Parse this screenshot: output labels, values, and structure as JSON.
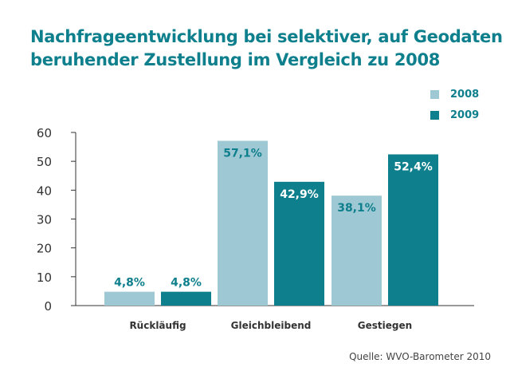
{
  "title_lines": [
    "Nachfrageentwicklung bei selektiver, auf Geodaten",
    "beruhender Zustellung im Vergleich zu 2008"
  ],
  "source": "Quelle: WVO-Barometer 2010",
  "chart_data": {
    "type": "bar",
    "title": "Nachfrageentwicklung bei selektiver, auf Geodaten beruhender Zustellung im Vergleich zu 2008",
    "categories": [
      "Rückläufig",
      "Gleichbleibend",
      "Gestiegen"
    ],
    "series": [
      {
        "name": "2008",
        "values": [
          4.8,
          57.1,
          38.1
        ],
        "labels": [
          "4,8%",
          "57,1%",
          "38,1%"
        ],
        "color": "#9ec8d3",
        "label_color": "#0e7f8c"
      },
      {
        "name": "2009",
        "values": [
          4.8,
          42.9,
          52.4
        ],
        "labels": [
          "4,8%",
          "42,9%",
          "52,4%"
        ],
        "color": "#0e7f8c",
        "label_color": "#ffffff"
      }
    ],
    "ylim": [
      0,
      60
    ],
    "yticks": [
      0,
      10,
      20,
      30,
      40,
      50,
      60
    ],
    "xlabel": "",
    "ylabel": "",
    "grid": false,
    "legend_position": "top-right"
  }
}
